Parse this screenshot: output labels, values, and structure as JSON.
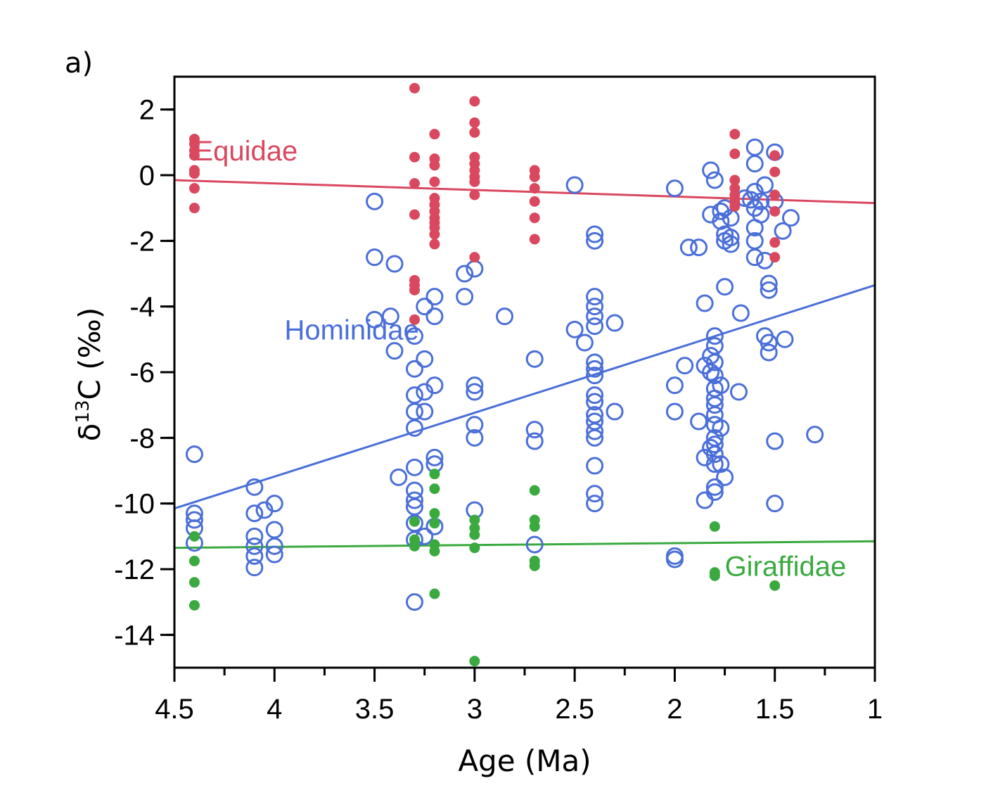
{
  "chart_data": {
    "type": "scatter",
    "panel_label": "a)",
    "xlabel": "Age (Ma)",
    "ylabel_parts": {
      "delta": "δ",
      "sup": "13",
      "rest": "C (‰)"
    },
    "xlim": [
      4.5,
      1
    ],
    "ylim": [
      -15,
      3
    ],
    "x_reversed": true,
    "grid": false,
    "x_ticks": [
      4.5,
      4,
      3.5,
      3,
      2.5,
      2,
      1.5,
      1
    ],
    "x_tick_labels": [
      "4.5",
      "4",
      "3.5",
      "3",
      "2.5",
      "2",
      "1.5",
      "1"
    ],
    "y_ticks": [
      2,
      0,
      -2,
      -4,
      -6,
      -8,
      -10,
      -12,
      -14
    ],
    "y_tick_labels": [
      "2",
      "0",
      "-2",
      "-4",
      "-6",
      "-8",
      "-10",
      "-12",
      "-14"
    ],
    "series": [
      {
        "name": "Equidae",
        "color": "#d9485f",
        "marker": "filled-circle",
        "label_at": [
          4.4,
          0.45
        ],
        "trend": [
          [
            4.5,
            -0.15
          ],
          [
            1.0,
            -0.85
          ]
        ],
        "points": [
          [
            4.4,
            1.1
          ],
          [
            4.4,
            0.95
          ],
          [
            4.4,
            0.75
          ],
          [
            4.4,
            0.6
          ],
          [
            4.4,
            0.15
          ],
          [
            4.4,
            0.05
          ],
          [
            4.4,
            -0.4
          ],
          [
            4.4,
            -1.0
          ],
          [
            3.3,
            2.65
          ],
          [
            3.3,
            0.55
          ],
          [
            3.3,
            -0.25
          ],
          [
            3.3,
            -1.2
          ],
          [
            3.3,
            -3.2
          ],
          [
            3.3,
            -3.35
          ],
          [
            3.3,
            -3.5
          ],
          [
            3.3,
            -4.4
          ],
          [
            3.2,
            1.25
          ],
          [
            3.2,
            0.5
          ],
          [
            3.2,
            0.3
          ],
          [
            3.2,
            -0.2
          ],
          [
            3.2,
            -0.7
          ],
          [
            3.2,
            -0.9
          ],
          [
            3.2,
            -1.1
          ],
          [
            3.2,
            -1.3
          ],
          [
            3.2,
            -1.45
          ],
          [
            3.2,
            -1.6
          ],
          [
            3.2,
            -1.8
          ],
          [
            3.2,
            -2.1
          ],
          [
            3.0,
            2.25
          ],
          [
            3.0,
            1.6
          ],
          [
            3.0,
            1.3
          ],
          [
            3.0,
            0.55
          ],
          [
            3.0,
            0.35
          ],
          [
            3.0,
            0.15
          ],
          [
            3.0,
            -0.05
          ],
          [
            3.0,
            -0.2
          ],
          [
            3.0,
            -0.6
          ],
          [
            3.0,
            -2.5
          ],
          [
            2.7,
            0.15
          ],
          [
            2.7,
            -0.05
          ],
          [
            2.7,
            -0.4
          ],
          [
            2.7,
            -0.8
          ],
          [
            2.7,
            -1.3
          ],
          [
            2.7,
            -1.95
          ],
          [
            1.7,
            1.25
          ],
          [
            1.7,
            0.65
          ],
          [
            1.7,
            -0.15
          ],
          [
            1.7,
            -0.4
          ],
          [
            1.7,
            -0.6
          ],
          [
            1.7,
            -0.8
          ],
          [
            1.7,
            -0.95
          ],
          [
            1.5,
            0.6
          ],
          [
            1.5,
            0.1
          ],
          [
            1.5,
            -0.6
          ],
          [
            1.5,
            -1.1
          ],
          [
            1.5,
            -2.05
          ],
          [
            1.5,
            -2.5
          ]
        ]
      },
      {
        "name": "Hominidae",
        "color": "#4a6fd8",
        "marker": "open-circle",
        "label_at": [
          3.95,
          -5.0
        ],
        "trend": [
          [
            4.5,
            -10.15
          ],
          [
            1.0,
            -3.35
          ]
        ],
        "points": [
          [
            4.4,
            -8.5
          ],
          [
            4.4,
            -10.3
          ],
          [
            4.4,
            -10.5
          ],
          [
            4.4,
            -10.75
          ],
          [
            4.4,
            -11.2
          ],
          [
            4.1,
            -9.5
          ],
          [
            4.1,
            -10.3
          ],
          [
            4.1,
            -11.0
          ],
          [
            4.1,
            -11.3
          ],
          [
            4.1,
            -11.6
          ],
          [
            4.1,
            -11.95
          ],
          [
            4.05,
            -10.2
          ],
          [
            4.0,
            -10.0
          ],
          [
            4.0,
            -10.8
          ],
          [
            4.0,
            -11.3
          ],
          [
            4.0,
            -11.55
          ],
          [
            3.5,
            -0.8
          ],
          [
            3.5,
            -2.5
          ],
          [
            3.5,
            -4.4
          ],
          [
            3.4,
            -2.7
          ],
          [
            3.4,
            -5.35
          ],
          [
            3.42,
            -4.3
          ],
          [
            3.38,
            -9.2
          ],
          [
            3.3,
            -4.9
          ],
          [
            3.3,
            -5.9
          ],
          [
            3.3,
            -6.7
          ],
          [
            3.3,
            -7.2
          ],
          [
            3.3,
            -7.7
          ],
          [
            3.3,
            -8.9
          ],
          [
            3.3,
            -9.6
          ],
          [
            3.3,
            -9.9
          ],
          [
            3.3,
            -10.1
          ],
          [
            3.3,
            -10.6
          ],
          [
            3.3,
            -11.1
          ],
          [
            3.3,
            -13.0
          ],
          [
            3.25,
            -4.0
          ],
          [
            3.25,
            -5.6
          ],
          [
            3.25,
            -6.6
          ],
          [
            3.25,
            -7.2
          ],
          [
            3.25,
            -11.0
          ],
          [
            3.2,
            -3.7
          ],
          [
            3.2,
            -4.3
          ],
          [
            3.2,
            -6.4
          ],
          [
            3.2,
            -8.6
          ],
          [
            3.2,
            -8.8
          ],
          [
            3.2,
            -10.7
          ],
          [
            3.05,
            -3.0
          ],
          [
            3.05,
            -3.7
          ],
          [
            3.0,
            -2.85
          ],
          [
            3.0,
            -6.4
          ],
          [
            3.0,
            -6.6
          ],
          [
            3.0,
            -7.6
          ],
          [
            3.0,
            -8.0
          ],
          [
            3.0,
            -10.2
          ],
          [
            2.85,
            -4.3
          ],
          [
            2.7,
            -5.6
          ],
          [
            2.7,
            -7.75
          ],
          [
            2.7,
            -8.1
          ],
          [
            2.7,
            -11.25
          ],
          [
            2.5,
            -0.3
          ],
          [
            2.5,
            -4.7
          ],
          [
            2.45,
            -5.1
          ],
          [
            2.4,
            -1.8
          ],
          [
            2.4,
            -2.0
          ],
          [
            2.4,
            -3.7
          ],
          [
            2.4,
            -4.0
          ],
          [
            2.4,
            -4.3
          ],
          [
            2.4,
            -4.6
          ],
          [
            2.4,
            -5.7
          ],
          [
            2.4,
            -5.9
          ],
          [
            2.4,
            -6.1
          ],
          [
            2.4,
            -6.7
          ],
          [
            2.4,
            -6.9
          ],
          [
            2.4,
            -7.3
          ],
          [
            2.4,
            -7.5
          ],
          [
            2.4,
            -7.8
          ],
          [
            2.4,
            -8.0
          ],
          [
            2.4,
            -8.85
          ],
          [
            2.4,
            -9.7
          ],
          [
            2.4,
            -10.0
          ],
          [
            2.3,
            -4.5
          ],
          [
            2.3,
            -7.2
          ],
          [
            2.0,
            -0.4
          ],
          [
            2.0,
            -6.4
          ],
          [
            2.0,
            -7.2
          ],
          [
            2.0,
            -11.6
          ],
          [
            2.0,
            -11.7
          ],
          [
            1.95,
            -5.8
          ],
          [
            1.93,
            -2.2
          ],
          [
            1.88,
            -2.2
          ],
          [
            1.88,
            -7.5
          ],
          [
            1.85,
            -3.9
          ],
          [
            1.85,
            -5.8
          ],
          [
            1.85,
            -8.6
          ],
          [
            1.85,
            -9.9
          ],
          [
            1.82,
            0.15
          ],
          [
            1.82,
            -1.2
          ],
          [
            1.82,
            -5.5
          ],
          [
            1.82,
            -6.0
          ],
          [
            1.82,
            -8.3
          ],
          [
            1.8,
            -0.15
          ],
          [
            1.8,
            -4.9
          ],
          [
            1.8,
            -5.2
          ],
          [
            1.8,
            -5.7
          ],
          [
            1.8,
            -6.1
          ],
          [
            1.8,
            -6.5
          ],
          [
            1.8,
            -6.8
          ],
          [
            1.8,
            -7.0
          ],
          [
            1.8,
            -7.3
          ],
          [
            1.8,
            -7.6
          ],
          [
            1.8,
            -8.0
          ],
          [
            1.8,
            -8.2
          ],
          [
            1.8,
            -8.5
          ],
          [
            1.8,
            -8.8
          ],
          [
            1.8,
            -9.5
          ],
          [
            1.8,
            -9.65
          ],
          [
            1.77,
            -1.1
          ],
          [
            1.77,
            -1.4
          ],
          [
            1.77,
            -6.4
          ],
          [
            1.77,
            -7.7
          ],
          [
            1.77,
            -8.8
          ],
          [
            1.75,
            -1.0
          ],
          [
            1.75,
            -1.8
          ],
          [
            1.75,
            -2.0
          ],
          [
            1.75,
            -3.4
          ],
          [
            1.75,
            -9.2
          ],
          [
            1.72,
            -1.3
          ],
          [
            1.72,
            -1.9
          ],
          [
            1.72,
            -2.1
          ],
          [
            1.67,
            -4.2
          ],
          [
            1.68,
            -6.6
          ],
          [
            1.65,
            -0.7
          ],
          [
            1.62,
            -0.75
          ],
          [
            1.6,
            0.85
          ],
          [
            1.6,
            0.35
          ],
          [
            1.6,
            -0.5
          ],
          [
            1.6,
            -1.0
          ],
          [
            1.6,
            -1.6
          ],
          [
            1.6,
            -2.0
          ],
          [
            1.6,
            -2.5
          ],
          [
            1.57,
            -0.8
          ],
          [
            1.57,
            -1.2
          ],
          [
            1.55,
            -2.6
          ],
          [
            1.55,
            -0.3
          ],
          [
            1.53,
            -3.3
          ],
          [
            1.53,
            -3.5
          ],
          [
            1.55,
            -4.9
          ],
          [
            1.53,
            -5.1
          ],
          [
            1.53,
            -5.4
          ],
          [
            1.5,
            0.7
          ],
          [
            1.5,
            -0.8
          ],
          [
            1.5,
            -8.1
          ],
          [
            1.5,
            -10.0
          ],
          [
            1.46,
            -1.7
          ],
          [
            1.42,
            -1.3
          ],
          [
            1.45,
            -5.0
          ],
          [
            1.3,
            -7.9
          ]
        ]
      },
      {
        "name": "Giraffidae",
        "color": "#3aaa3f",
        "marker": "filled-circle",
        "label_at": [
          1.75,
          -12.2
        ],
        "trend": [
          [
            4.5,
            -11.35
          ],
          [
            1.0,
            -11.15
          ]
        ],
        "points": [
          [
            4.4,
            -11.0
          ],
          [
            4.4,
            -11.75
          ],
          [
            4.4,
            -12.4
          ],
          [
            4.4,
            -13.1
          ],
          [
            3.3,
            -10.55
          ],
          [
            3.3,
            -11.1
          ],
          [
            3.3,
            -11.25
          ],
          [
            3.3,
            -11.3
          ],
          [
            3.2,
            -9.1
          ],
          [
            3.2,
            -9.55
          ],
          [
            3.2,
            -10.3
          ],
          [
            3.2,
            -10.6
          ],
          [
            3.2,
            -11.25
          ],
          [
            3.2,
            -11.45
          ],
          [
            3.2,
            -12.75
          ],
          [
            3.0,
            -10.5
          ],
          [
            3.0,
            -10.75
          ],
          [
            3.0,
            -10.95
          ],
          [
            3.0,
            -11.35
          ],
          [
            3.0,
            -14.8
          ],
          [
            2.7,
            -9.6
          ],
          [
            2.7,
            -10.5
          ],
          [
            2.7,
            -10.7
          ],
          [
            2.7,
            -11.75
          ],
          [
            2.7,
            -11.9
          ],
          [
            1.8,
            -10.7
          ],
          [
            1.8,
            -12.1
          ],
          [
            1.8,
            -12.2
          ],
          [
            1.5,
            -12.5
          ]
        ]
      }
    ]
  }
}
